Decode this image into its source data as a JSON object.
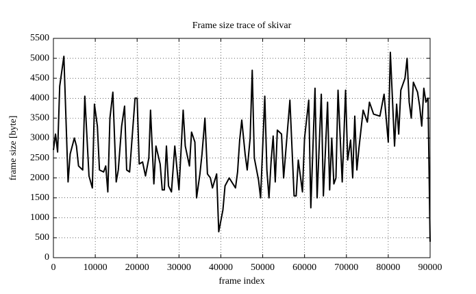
{
  "chart_data": {
    "type": "line",
    "title": "Frame size trace of skivar",
    "x_label": "frame index",
    "y_label": "frame size [byte]",
    "x": [
      0,
      500,
      1000,
      1500,
      2500,
      3500,
      4000,
      5000,
      5500,
      6000,
      7000,
      7500,
      8500,
      9300,
      9800,
      10500,
      11000,
      12000,
      12500,
      13000,
      13500,
      14200,
      15000,
      15500,
      16300,
      17000,
      17500,
      18200,
      19500,
      20000,
      20500,
      21300,
      22000,
      22800,
      23200,
      24000,
      24500,
      25500,
      26000,
      26500,
      27000,
      27500,
      28200,
      29000,
      30000,
      31000,
      31500,
      32500,
      33000,
      33800,
      34200,
      35000,
      35500,
      36200,
      36800,
      37500,
      38000,
      39000,
      39500,
      40500,
      41000,
      42000,
      43500,
      44000,
      44500,
      45000,
      45800,
      46300,
      47000,
      47500,
      48000,
      49000,
      49500,
      50500,
      51000,
      51500,
      52000,
      52500,
      53000,
      53500,
      54500,
      55000,
      56500,
      57500,
      58000,
      58500,
      59500,
      60000,
      61000,
      61500,
      62500,
      63000,
      64000,
      64500,
      65500,
      66000,
      66500,
      67000,
      67500,
      68000,
      69000,
      69800,
      70300,
      71000,
      71500,
      72000,
      72500,
      73000,
      74000,
      75000,
      75500,
      76500,
      78000,
      79000,
      80000,
      80500,
      81500,
      82000,
      82500,
      83000,
      84000,
      84500,
      85000,
      85500,
      86000,
      87000,
      87500,
      88000,
      88500,
      89000,
      89500,
      90000
    ],
    "values": [
      2700,
      3100,
      2650,
      4300,
      5050,
      1900,
      2600,
      3000,
      2800,
      2300,
      2200,
      4050,
      2050,
      1750,
      3850,
      3300,
      2200,
      2150,
      2300,
      1650,
      3500,
      4150,
      1900,
      2200,
      3300,
      3800,
      2200,
      2150,
      4000,
      4000,
      2350,
      2400,
      2050,
      2500,
      3700,
      1850,
      2800,
      2350,
      1700,
      1700,
      2800,
      1800,
      1650,
      2800,
      1700,
      3700,
      2800,
      2300,
      3150,
      2900,
      1500,
      2100,
      2600,
      3500,
      2100,
      2000,
      1750,
      2100,
      650,
      1200,
      1800,
      2000,
      1750,
      2150,
      2950,
      3450,
      2600,
      2200,
      3000,
      4700,
      2500,
      1950,
      1500,
      4050,
      2200,
      1500,
      2400,
      3050,
      1900,
      3200,
      3100,
      2000,
      3950,
      1550,
      1550,
      2450,
      1650,
      3000,
      3950,
      1250,
      4250,
      1500,
      4100,
      1550,
      3900,
      1700,
      3000,
      1850,
      2000,
      4200,
      1900,
      4200,
      2450,
      2950,
      2000,
      3550,
      2200,
      2750,
      3700,
      3400,
      3900,
      3600,
      3550,
      4100,
      2900,
      5150,
      2800,
      3850,
      3100,
      4200,
      4500,
      5000,
      3900,
      3500,
      4400,
      4150,
      3800,
      3300,
      4250,
      3900,
      4000,
      400
    ],
    "color": "#000000",
    "xlim": [
      0,
      90000
    ],
    "xticks": [
      0,
      10000,
      20000,
      30000,
      40000,
      50000,
      60000,
      70000,
      80000,
      90000
    ],
    "ylim": [
      0,
      5500
    ],
    "yticks": [
      0,
      500,
      1000,
      1500,
      2000,
      2500,
      3000,
      3500,
      4000,
      4500,
      5000,
      5500
    ],
    "grid": true
  }
}
